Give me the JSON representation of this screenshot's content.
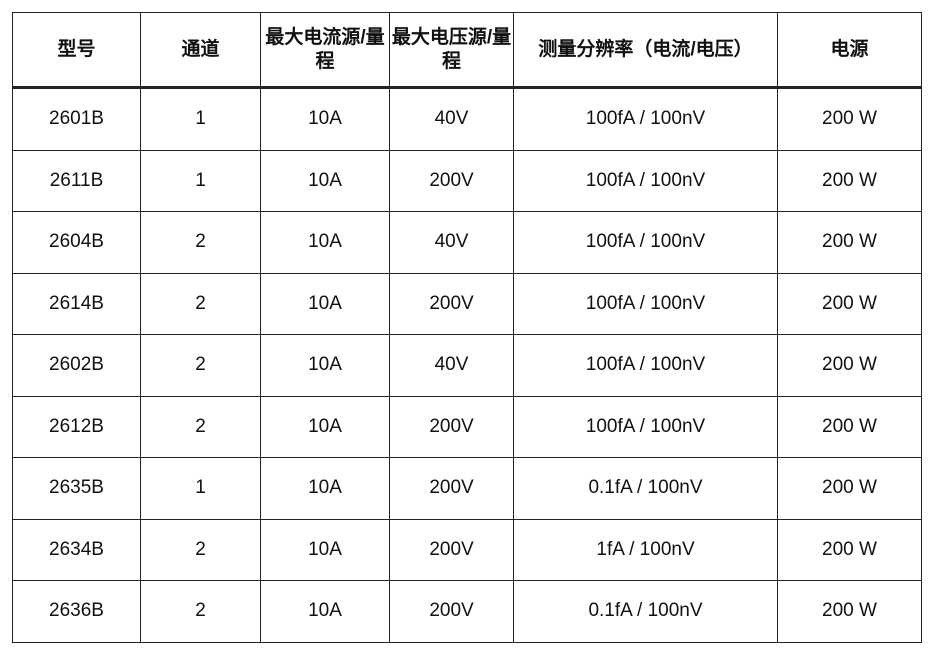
{
  "table": {
    "headers": [
      "型号",
      "通道",
      "最大电流源/量程",
      "最大电压源/量程",
      "测量分辨率（电流/电压）",
      "电源"
    ],
    "rows": [
      [
        "2601B",
        "1",
        "10A",
        "40V",
        "100fA / 100nV",
        "200 W"
      ],
      [
        "2611B",
        "1",
        "10A",
        "200V",
        "100fA / 100nV",
        "200 W"
      ],
      [
        "2604B",
        "2",
        "10A",
        "40V",
        "100fA / 100nV",
        "200 W"
      ],
      [
        "2614B",
        "2",
        "10A",
        "200V",
        "100fA / 100nV",
        "200 W"
      ],
      [
        "2602B",
        "2",
        "10A",
        "40V",
        "100fA / 100nV",
        "200 W"
      ],
      [
        "2612B",
        "2",
        "10A",
        "200V",
        "100fA / 100nV",
        "200 W"
      ],
      [
        "2635B",
        "1",
        "10A",
        "200V",
        "0.1fA / 100nV",
        "200 W"
      ],
      [
        "2634B",
        "2",
        "10A",
        "200V",
        "1fA / 100nV",
        "200 W"
      ],
      [
        "2636B",
        "2",
        "10A",
        "200V",
        "0.1fA / 100nV",
        "200 W"
      ]
    ]
  }
}
